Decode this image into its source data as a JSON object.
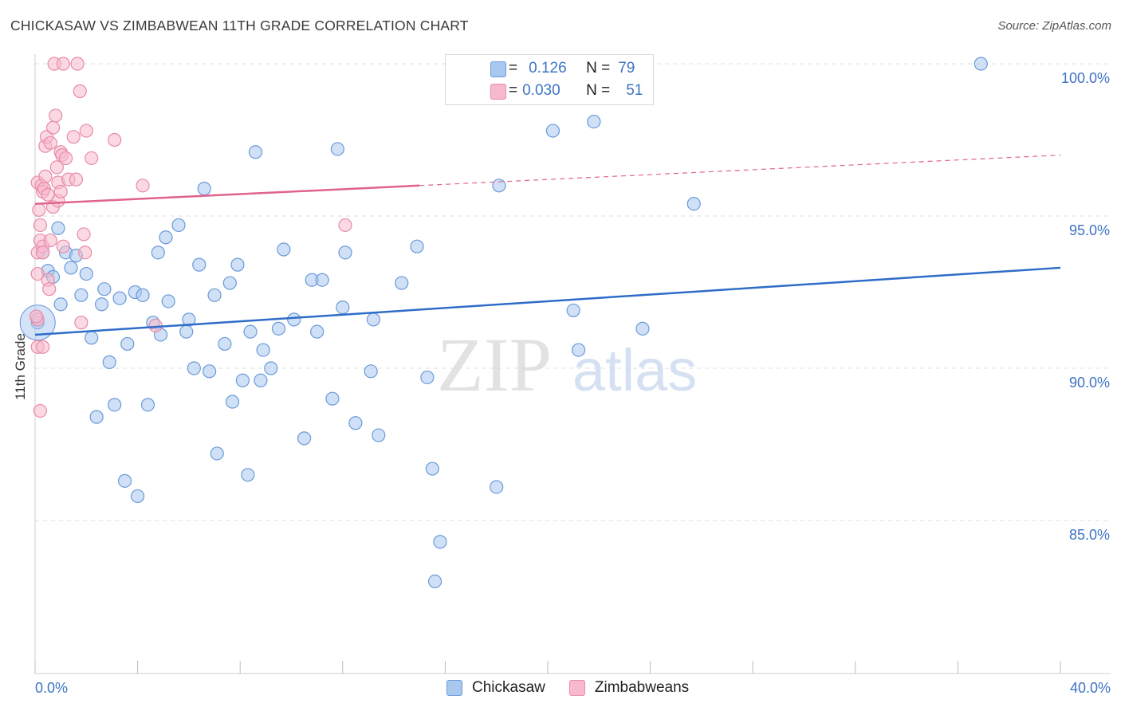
{
  "title": "CHICKASAW VS ZIMBABWEAN 11TH GRADE CORRELATION CHART",
  "source": "Source: ZipAtlas.com",
  "watermark": {
    "zip": "ZIP",
    "atlas": "atlas"
  },
  "colors": {
    "blue_fill": "#a9c8f0",
    "blue_stroke": "#6a9ad8",
    "blue_line": "#2f6cc8",
    "pink_fill": "#f7b9cc",
    "pink_stroke": "#e88aa8",
    "pink_line": "#e0638c",
    "tick_label": "#3d74c4",
    "grid": "#dcdcdc"
  },
  "legend": {
    "rows": [
      {
        "r_label": "R =",
        "r_value": "0.126",
        "n_label": "N =",
        "n_value": "79"
      },
      {
        "r_label": "R =",
        "r_value": "0.030",
        "n_label": "N =",
        "n_value": "51"
      }
    ]
  },
  "bottom_legend": [
    "Chickasaw",
    "Zimbabweans"
  ],
  "chart_data": {
    "type": "scatter",
    "title": "CHICKASAW VS ZIMBABWEAN 11TH GRADE CORRELATION CHART",
    "xlabel": "",
    "ylabel": "11th Grade",
    "xlim": [
      0,
      40
    ],
    "ylim": [
      80.5,
      101.0
    ],
    "x_tick_labels": [
      "0.0%",
      "40.0%"
    ],
    "y_ticks": [
      85,
      90,
      95,
      100
    ],
    "y_tick_labels": [
      "85.0%",
      "90.0%",
      "95.0%",
      "100.0%"
    ],
    "grid": true,
    "legend_position": "top-center",
    "series": [
      {
        "name": "Chickasaw",
        "color": "#a9c8f0",
        "trend": {
          "x": [
            0,
            40
          ],
          "y": [
            91.1,
            93.3
          ]
        },
        "points": [
          [
            0.1,
            91.5
          ],
          [
            0.3,
            93.8
          ],
          [
            0.5,
            93.2
          ],
          [
            0.7,
            93.0
          ],
          [
            0.9,
            94.6
          ],
          [
            1.0,
            92.1
          ],
          [
            1.2,
            93.8
          ],
          [
            1.4,
            93.3
          ],
          [
            1.6,
            93.7
          ],
          [
            1.8,
            92.4
          ],
          [
            2.0,
            93.1
          ],
          [
            2.2,
            91.0
          ],
          [
            2.4,
            88.4
          ],
          [
            2.6,
            92.1
          ],
          [
            2.7,
            92.6
          ],
          [
            2.9,
            90.2
          ],
          [
            3.1,
            88.8
          ],
          [
            3.3,
            92.3
          ],
          [
            3.5,
            86.3
          ],
          [
            3.6,
            90.8
          ],
          [
            3.9,
            92.5
          ],
          [
            4.0,
            85.8
          ],
          [
            4.2,
            92.4
          ],
          [
            4.4,
            88.8
          ],
          [
            4.6,
            91.5
          ],
          [
            4.8,
            93.8
          ],
          [
            4.9,
            91.1
          ],
          [
            5.1,
            94.3
          ],
          [
            5.2,
            92.2
          ],
          [
            5.6,
            94.7
          ],
          [
            5.9,
            91.2
          ],
          [
            6.0,
            91.6
          ],
          [
            6.2,
            90.0
          ],
          [
            6.4,
            93.4
          ],
          [
            6.6,
            95.9
          ],
          [
            6.8,
            89.9
          ],
          [
            7.0,
            92.4
          ],
          [
            7.1,
            87.2
          ],
          [
            7.4,
            90.8
          ],
          [
            7.6,
            92.8
          ],
          [
            7.7,
            88.9
          ],
          [
            7.9,
            93.4
          ],
          [
            8.1,
            89.6
          ],
          [
            8.3,
            86.5
          ],
          [
            8.4,
            91.2
          ],
          [
            8.6,
            97.1
          ],
          [
            8.8,
            89.6
          ],
          [
            8.9,
            90.6
          ],
          [
            9.2,
            90.0
          ],
          [
            9.5,
            91.3
          ],
          [
            9.7,
            93.9
          ],
          [
            10.1,
            91.6
          ],
          [
            10.5,
            87.7
          ],
          [
            10.8,
            92.9
          ],
          [
            11.0,
            91.2
          ],
          [
            11.2,
            92.9
          ],
          [
            11.6,
            89.0
          ],
          [
            11.8,
            97.2
          ],
          [
            12.0,
            92.0
          ],
          [
            12.1,
            93.8
          ],
          [
            12.5,
            88.2
          ],
          [
            13.1,
            89.9
          ],
          [
            13.2,
            91.6
          ],
          [
            13.4,
            87.8
          ],
          [
            14.3,
            92.8
          ],
          [
            14.9,
            94.0
          ],
          [
            15.3,
            89.7
          ],
          [
            15.5,
            86.7
          ],
          [
            15.8,
            84.3
          ],
          [
            15.6,
            83.0
          ],
          [
            18.0,
            86.1
          ],
          [
            18.1,
            96.0
          ],
          [
            20.2,
            97.8
          ],
          [
            21.0,
            91.9
          ],
          [
            21.2,
            90.6
          ],
          [
            21.8,
            98.1
          ],
          [
            23.7,
            91.3
          ],
          [
            25.7,
            95.4
          ],
          [
            36.9,
            100.0
          ]
        ]
      },
      {
        "name": "Zimbabweans",
        "color": "#f7b9cc",
        "trend": {
          "x": [
            0,
            40
          ],
          "y": [
            95.4,
            97.0
          ],
          "solid_until": 15.0
        },
        "points": [
          [
            0.1,
            96.1
          ],
          [
            0.1,
            93.8
          ],
          [
            0.1,
            93.1
          ],
          [
            0.1,
            91.6
          ],
          [
            0.1,
            90.7
          ],
          [
            0.15,
            95.2
          ],
          [
            0.2,
            94.7
          ],
          [
            0.2,
            94.2
          ],
          [
            0.2,
            88.6
          ],
          [
            0.25,
            96.0
          ],
          [
            0.3,
            95.8
          ],
          [
            0.3,
            94.0
          ],
          [
            0.3,
            93.8
          ],
          [
            0.3,
            90.7
          ],
          [
            0.35,
            95.9
          ],
          [
            0.4,
            97.3
          ],
          [
            0.4,
            96.3
          ],
          [
            0.45,
            97.6
          ],
          [
            0.5,
            95.7
          ],
          [
            0.5,
            92.9
          ],
          [
            0.55,
            92.6
          ],
          [
            0.6,
            97.4
          ],
          [
            0.6,
            94.2
          ],
          [
            0.7,
            97.9
          ],
          [
            0.7,
            95.3
          ],
          [
            0.75,
            100.0
          ],
          [
            0.8,
            98.3
          ],
          [
            0.85,
            96.6
          ],
          [
            0.9,
            96.1
          ],
          [
            0.9,
            95.5
          ],
          [
            1.0,
            97.1
          ],
          [
            1.0,
            95.8
          ],
          [
            1.05,
            97.0
          ],
          [
            1.1,
            100.0
          ],
          [
            1.1,
            94.0
          ],
          [
            1.2,
            96.9
          ],
          [
            1.3,
            96.2
          ],
          [
            1.5,
            97.6
          ],
          [
            1.6,
            96.2
          ],
          [
            1.65,
            100.0
          ],
          [
            1.75,
            99.1
          ],
          [
            1.8,
            91.5
          ],
          [
            1.9,
            94.4
          ],
          [
            1.95,
            93.8
          ],
          [
            2.0,
            97.8
          ],
          [
            2.2,
            96.9
          ],
          [
            3.1,
            97.5
          ],
          [
            4.2,
            96.0
          ],
          [
            4.7,
            91.4
          ],
          [
            12.1,
            94.7
          ],
          [
            0.05,
            91.7
          ]
        ]
      }
    ]
  }
}
